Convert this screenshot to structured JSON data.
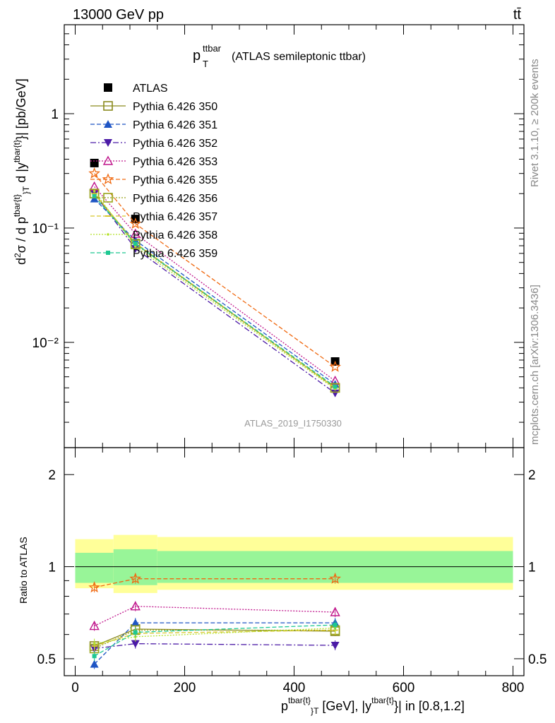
{
  "header": {
    "left": "13000 GeV pp",
    "right": "tt̄",
    "title_main": "p",
    "title_sup": "ttbar",
    "title_sub": "T",
    "title_rest": "(ATLAS semileptonic ttbar)",
    "watermark": "ATLAS_2019_I1750330"
  },
  "side": {
    "rivet": "Rivet 3.1.10, ≥ 200k events",
    "mcplots": "mcplots.cern.ch [arXiv:1306.3436]"
  },
  "colors": {
    "ATLAS": "#000000",
    "350": "#8a8a1e",
    "351": "#1f55c4",
    "352": "#4b1aa6",
    "353": "#c0168c",
    "355": "#f06a12",
    "356": "#9aa51c",
    "357": "#d8c62a",
    "358": "#b5e22a",
    "359": "#1ec892",
    "band_inner": "#98f598",
    "band_outer": "#ffff99"
  },
  "chart_data": [
    {
      "type": "line",
      "panel": "main",
      "ylabel": "d²σ / d p^{tbar{t}}_T d |y^{tbar{t}}| [pb/GeV]",
      "yscale": "log",
      "ylim": [
        0.0012,
        6
      ],
      "xlim": [
        -20,
        820
      ],
      "ytick_labels": [
        "10⁻²",
        "10⁻¹",
        "1"
      ],
      "x": [
        35,
        110,
        475
      ],
      "series": [
        {
          "name": "ATLAS",
          "marker": "square",
          "values": [
            0.37,
            0.12,
            0.0068
          ]
        },
        {
          "name": "Pythia 6.426 350",
          "marker": "open-square",
          "values": [
            0.2,
            0.073,
            0.004
          ]
        },
        {
          "name": "Pythia 6.426 351",
          "marker": "triangle-up",
          "values": [
            0.18,
            0.078,
            0.0043
          ]
        },
        {
          "name": "Pythia 6.426 352",
          "marker": "triangle-down",
          "values": [
            0.2,
            0.066,
            0.0036
          ]
        },
        {
          "name": "Pythia 6.426 353",
          "marker": "open-triangle",
          "values": [
            0.23,
            0.089,
            0.0046
          ]
        },
        {
          "name": "Pythia 6.426 355",
          "marker": "open-star",
          "values": [
            0.3,
            0.109,
            0.0061
          ]
        },
        {
          "name": "Pythia 6.426 356",
          "marker": "open-square",
          "values": [
            0.2,
            0.072,
            0.004
          ]
        },
        {
          "name": "Pythia 6.426 357",
          "marker": "dash",
          "values": [
            0.2,
            0.074,
            0.004
          ]
        },
        {
          "name": "Pythia 6.426 358",
          "marker": "dot",
          "values": [
            0.21,
            0.069,
            0.0039
          ]
        },
        {
          "name": "Pythia 6.426 359",
          "marker": "small-square",
          "values": [
            0.19,
            0.073,
            0.0041
          ]
        }
      ]
    },
    {
      "type": "line",
      "panel": "ratio",
      "ylabel": "Ratio to ATLAS",
      "xlabel": "p^{tbar{t}}_T [GeV], |y^{tbar{t}}| in [0.8,1.2]",
      "yscale": "log",
      "ylim": [
        0.44,
        2.45
      ],
      "xlim": [
        -20,
        820
      ],
      "ytick_labels": [
        "0.5",
        "1",
        "2"
      ],
      "xtick_labels": [
        "0",
        "200",
        "400",
        "600",
        "800"
      ],
      "x": [
        35,
        110,
        475
      ],
      "band_bins": [
        [
          0,
          70
        ],
        [
          70,
          150
        ],
        [
          150,
          800
        ]
      ],
      "band_inner": [
        [
          0.885,
          1.11
        ],
        [
          0.87,
          1.14
        ],
        [
          0.885,
          1.125
        ]
      ],
      "band_outer": [
        [
          0.85,
          1.23
        ],
        [
          0.82,
          1.27
        ],
        [
          0.84,
          1.25
        ]
      ],
      "series": [
        {
          "name": "Pythia 6.426 350",
          "values": [
            0.55,
            0.625,
            0.615
          ]
        },
        {
          "name": "Pythia 6.426 351",
          "values": [
            0.48,
            0.655,
            0.655
          ]
        },
        {
          "name": "Pythia 6.426 352",
          "values": [
            0.54,
            0.56,
            0.553
          ]
        },
        {
          "name": "Pythia 6.426 353",
          "values": [
            0.64,
            0.742,
            0.71
          ]
        },
        {
          "name": "Pythia 6.426 355",
          "values": [
            0.855,
            0.913,
            0.913
          ]
        },
        {
          "name": "Pythia 6.426 356",
          "values": [
            0.54,
            0.62,
            0.62
          ]
        },
        {
          "name": "Pythia 6.426 357",
          "values": [
            0.55,
            0.605,
            0.62
          ]
        },
        {
          "name": "Pythia 6.426 358",
          "values": [
            0.56,
            0.59,
            0.63
          ]
        },
        {
          "name": "Pythia 6.426 359",
          "values": [
            0.51,
            0.61,
            0.645
          ]
        }
      ]
    }
  ]
}
